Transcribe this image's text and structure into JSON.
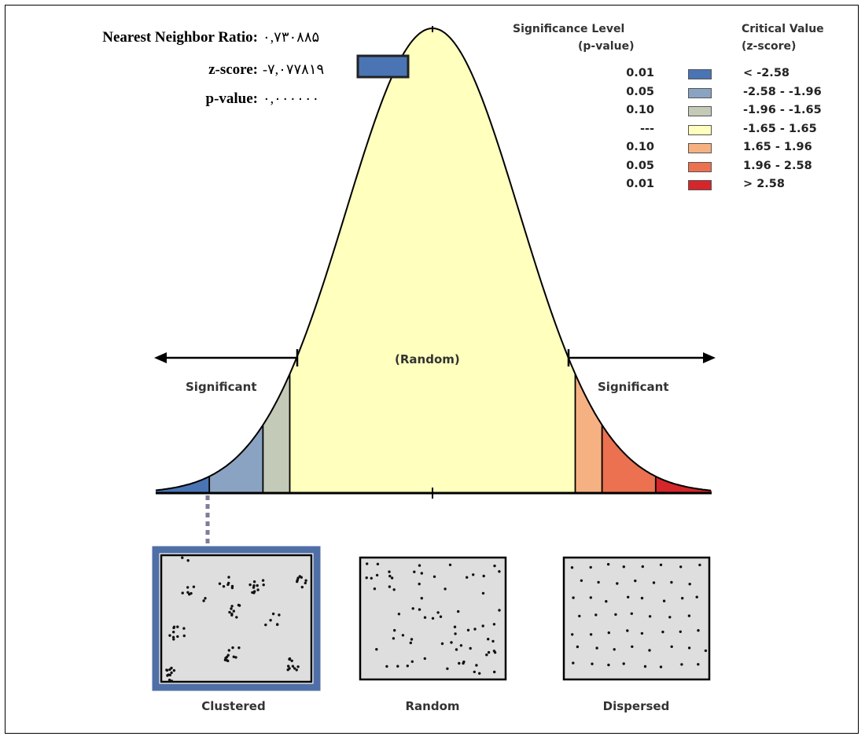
{
  "stats": {
    "nnr_label": "Nearest Neighbor Ratio:",
    "nnr_value": "۰,۷۳۰۸۸۵",
    "zscore_label": "z-score:",
    "zscore_value": "-۷,۰۷۷۸۱۹",
    "pvalue_label": "p-value:",
    "pvalue_value": "۰,۰۰۰۰۰۰"
  },
  "legend": {
    "significance_header_1": "Significance Level",
    "significance_header_2": "(p-value)",
    "critical_header_1": "Critical Value",
    "critical_header_2": "(z-score)",
    "rows": [
      {
        "p": "0.01",
        "z": "< -2.58",
        "color": "#4a74b4"
      },
      {
        "p": "0.05",
        "z": "-2.58 - -1.96",
        "color": "#8aa3c2"
      },
      {
        "p": "0.10",
        "z": "-1.96 - -1.65",
        "color": "#c3cab7"
      },
      {
        "p": "---",
        "z": "-1.65 - 1.65",
        "color": "#ffffbe"
      },
      {
        "p": "0.10",
        "z": "1.65 - 1.96",
        "color": "#f6b183"
      },
      {
        "p": "0.05",
        "z": "1.96 - 2.58",
        "color": "#eb7151"
      },
      {
        "p": "0.01",
        "z": "> 2.58",
        "color": "#d4262b"
      }
    ]
  },
  "diagram": {
    "left_significant": "Significant",
    "right_significant": "Significant",
    "center_label": "(Random)"
  },
  "patterns": {
    "clustered": "Clustered",
    "random": "Random",
    "dispersed": "Dispersed"
  },
  "result": {
    "z_score": -7.077819,
    "highlighted_pattern": "Clustered",
    "highlight_color": "#4a74b4"
  }
}
